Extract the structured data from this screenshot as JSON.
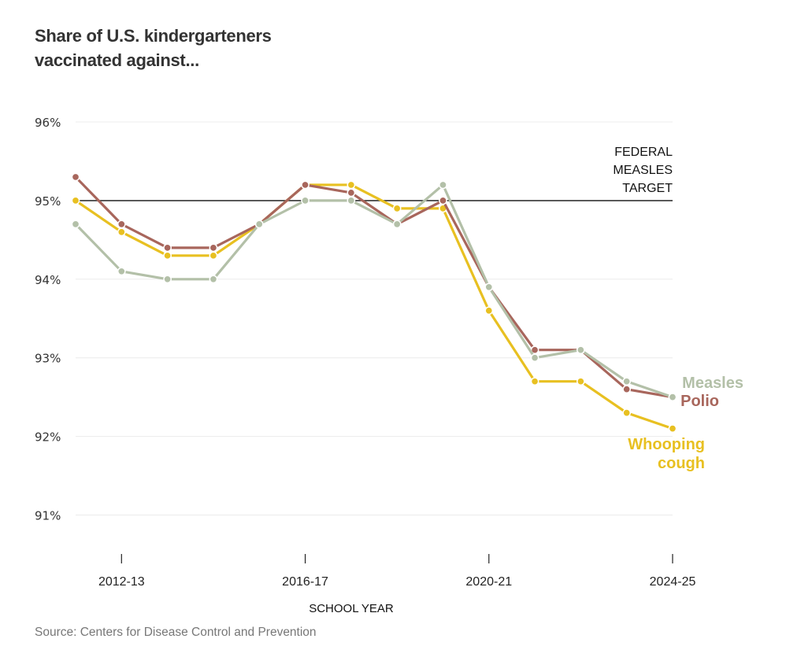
{
  "title_lines": [
    "Share of U.S. kindergarteners",
    "vaccinated against..."
  ],
  "source": "Source: Centers for Disease Control and Prevention",
  "chart_data": {
    "type": "line",
    "title": "Share of U.S. kindergarteners vaccinated against...",
    "xlabel": "SCHOOL YEAR",
    "ylabel": "",
    "x": [
      "2011-12",
      "2012-13",
      "2013-14",
      "2014-15",
      "2015-16",
      "2016-17",
      "2017-18",
      "2018-19",
      "2019-20",
      "2020-21",
      "2021-22",
      "2022-23",
      "2023-24",
      "2024-25"
    ],
    "x_tick_labels": [
      "2012-13",
      "2016-17",
      "2020-21",
      "2024-25"
    ],
    "y_tick_labels": [
      "96%",
      "95%",
      "94%",
      "93%",
      "92%",
      "91%"
    ],
    "y_ticks": [
      96,
      95,
      94,
      93,
      92,
      91
    ],
    "ylim": [
      90.5,
      96
    ],
    "grid": true,
    "legend": "direct labels at right end of lines",
    "reference_line": {
      "value": 95,
      "label_lines": [
        "FEDERAL",
        "MEASLES",
        "TARGET"
      ],
      "color": "#333333"
    },
    "series": [
      {
        "name": "Whooping cough",
        "label_lines": [
          "Whooping",
          "cough"
        ],
        "color": "#e8c021",
        "values": [
          95.0,
          94.6,
          94.3,
          94.3,
          94.7,
          95.2,
          95.2,
          94.9,
          94.9,
          93.6,
          92.7,
          92.7,
          92.3,
          92.1
        ]
      },
      {
        "name": "Polio",
        "label_lines": [
          "Polio"
        ],
        "color": "#a8665c",
        "values": [
          95.3,
          94.7,
          94.4,
          94.4,
          94.7,
          95.2,
          95.1,
          94.7,
          95.0,
          93.9,
          93.1,
          93.1,
          92.6,
          92.5
        ]
      },
      {
        "name": "Measles",
        "label_lines": [
          "Measles"
        ],
        "color": "#b3c0a8",
        "values": [
          94.7,
          94.1,
          94.0,
          94.0,
          94.7,
          95.0,
          95.0,
          94.7,
          95.2,
          93.9,
          93.0,
          93.1,
          92.7,
          92.5
        ]
      }
    ]
  }
}
